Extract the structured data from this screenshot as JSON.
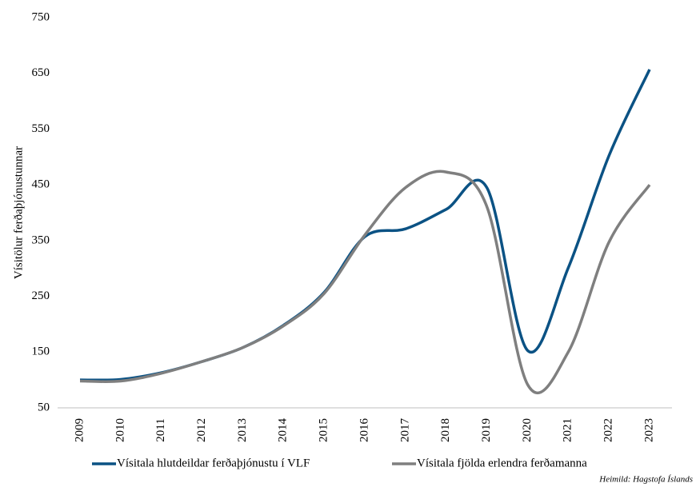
{
  "chart_data": {
    "type": "line",
    "y_label": "Vísitölur ferðaþjónustunnar",
    "source": "Heimild: Hagstofa Íslands",
    "categories": [
      "2009",
      "2010",
      "2011",
      "2012",
      "2013",
      "2014",
      "2015",
      "2016",
      "2017",
      "2018",
      "2019",
      "2020",
      "2021",
      "2022",
      "2023"
    ],
    "series": [
      {
        "name": "Vísitala hlutdeildar ferðaþjónustu í VLF",
        "color": "#0b5284",
        "values": [
          100,
          101,
          113,
          133,
          158,
          198,
          257,
          357,
          371,
          406,
          445,
          153,
          301,
          502,
          657
        ]
      },
      {
        "name": "Vísitala fjölda erlendra ferðamanna",
        "color": "#7f7f7f",
        "values": [
          98,
          98,
          112,
          133,
          158,
          197,
          255,
          360,
          445,
          473,
          411,
          92,
          150,
          347,
          450
        ]
      }
    ],
    "ylim": [
      50,
      750
    ],
    "yticks": [
      50,
      150,
      250,
      350,
      450,
      550,
      650,
      750
    ],
    "grid": false
  }
}
